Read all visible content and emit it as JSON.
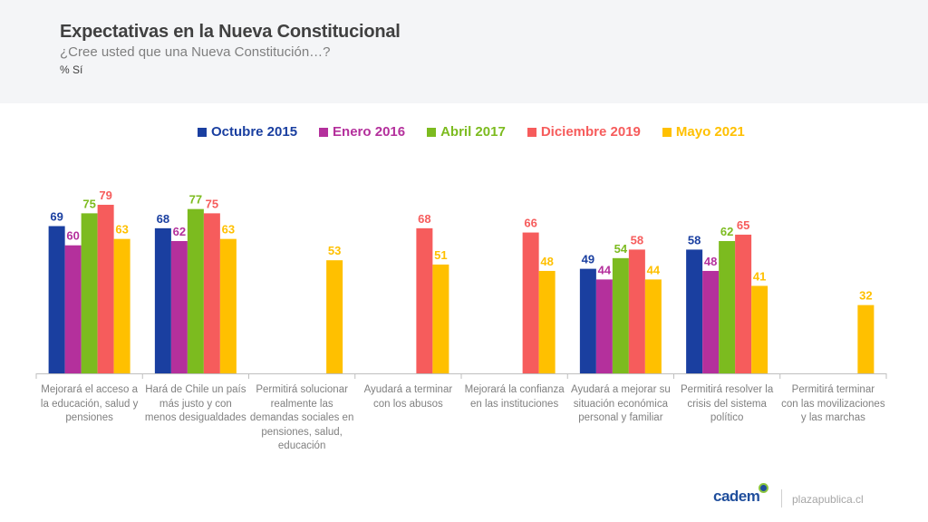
{
  "header": {
    "title": "Expectativas en la Nueva Constitucional",
    "subtitle": "¿Cree usted que una Nueva Constitución…?",
    "unit": "% Sí"
  },
  "chart_data": {
    "type": "bar",
    "title": "Expectativas en la Nueva Constitucional",
    "subtitle": "¿Cree usted que una Nueva Constitución…?",
    "ylabel": "% Sí",
    "xlabel": "",
    "ylim": [
      0,
      85
    ],
    "grid": false,
    "legend_position": "top-center",
    "categories": [
      "Mejorará el acceso a la educación, salud y pensiones",
      "Hará de Chile un país más justo y con menos desigualdades",
      "Permitirá solucionar realmente las demandas sociales en pensiones, salud, educación",
      "Ayudará a terminar con los abusos",
      "Mejorará la confianza en las instituciones",
      "Ayudará a mejorar su situación económica personal y familiar",
      "Permitirá resolver la crisis del sistema político",
      "Permitirá terminar con las movilizaciones y las marchas"
    ],
    "category_lines": [
      [
        "Mejorará el acceso a",
        "la educación, salud y",
        "pensiones"
      ],
      [
        "Hará de Chile un país",
        "más justo y con",
        "menos desigualdades"
      ],
      [
        "Permitirá solucionar",
        "realmente las",
        "demandas sociales en",
        "pensiones, salud,",
        "educación"
      ],
      [
        "Ayudará a terminar",
        "con los abusos"
      ],
      [
        "Mejorará la confianza",
        "en las instituciones"
      ],
      [
        "Ayudará a mejorar su",
        "situación económica",
        "personal y familiar"
      ],
      [
        "Permitirá resolver la",
        "crisis del sistema",
        "político"
      ],
      [
        "Permitirá terminar",
        "con las movilizaciones",
        "y las marchas"
      ]
    ],
    "series": [
      {
        "name": "Octubre 2015",
        "color": "#1a3fa0",
        "values": [
          69,
          68,
          null,
          null,
          null,
          49,
          58,
          null
        ]
      },
      {
        "name": "Enero 2016",
        "color": "#b4309c",
        "values": [
          60,
          62,
          null,
          null,
          null,
          44,
          48,
          null
        ]
      },
      {
        "name": "Abril 2017",
        "color": "#7cbb1f",
        "values": [
          75,
          77,
          null,
          null,
          null,
          54,
          62,
          null
        ]
      },
      {
        "name": "Diciembre 2019",
        "color": "#f65c5c",
        "values": [
          79,
          75,
          null,
          68,
          66,
          58,
          65,
          null
        ]
      },
      {
        "name": "Mayo 2021",
        "color": "#ffc000",
        "values": [
          63,
          63,
          53,
          51,
          48,
          44,
          41,
          32
        ]
      }
    ]
  },
  "footer": {
    "logo": "cadem",
    "site": "plazapublica.cl"
  }
}
